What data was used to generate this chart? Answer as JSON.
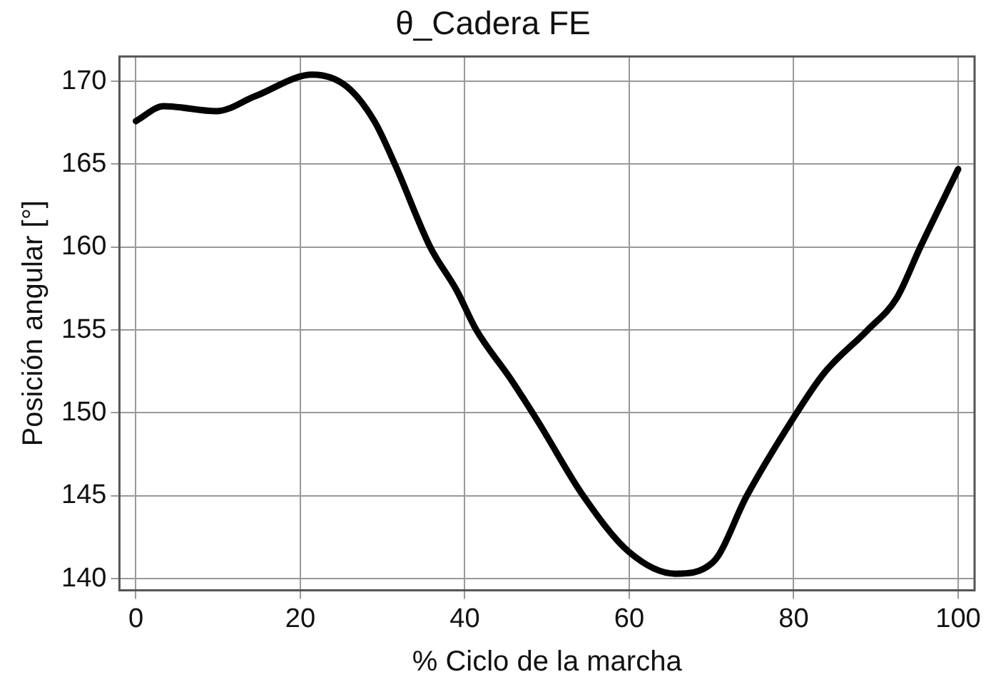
{
  "chart_data": {
    "type": "line",
    "title": "θ_Cadera FE",
    "xlabel": "% Ciclo de la marcha",
    "ylabel": "Posición angular [°]",
    "x": [
      0,
      3.4,
      9.8,
      14.5,
      21.5,
      25.6,
      29,
      31.5,
      35.8,
      39,
      41.4,
      45.5,
      49,
      54.4,
      60,
      65.6,
      70.2,
      74.3,
      79.6,
      83.7,
      89,
      92.5,
      95.4,
      100
    ],
    "series": [
      {
        "color": "#000000",
        "values": [
          167.6,
          168.5,
          168.2,
          169.1,
          170.4,
          169.7,
          167.6,
          165,
          160,
          157.4,
          155,
          152.1,
          149.4,
          145,
          141.6,
          140.3,
          141,
          145,
          149.4,
          152.4,
          155,
          156.9,
          160,
          164.7
        ]
      }
    ],
    "xlim": [
      -2,
      102
    ],
    "ylim": [
      139.3,
      171.5
    ],
    "xticks": [
      0,
      20,
      40,
      60,
      80,
      100
    ],
    "yticks": [
      140,
      145,
      150,
      155,
      160,
      165,
      170
    ],
    "grid": true,
    "legend": false,
    "marker": "none",
    "line_style": "solid"
  }
}
